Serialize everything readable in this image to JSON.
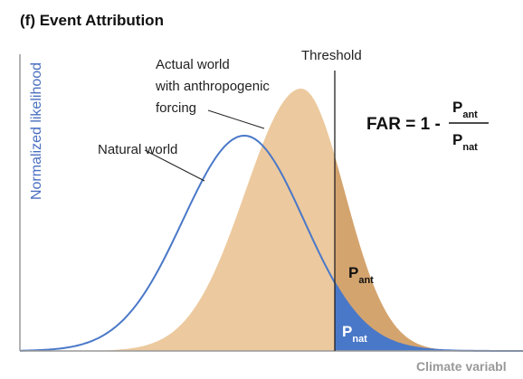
{
  "header": {
    "title": "(f) Event Attribution"
  },
  "axes": {
    "y_label": "Normalized likelihood",
    "x_label": "Climate variabl"
  },
  "labels": {
    "actual_world": [
      "Actual world",
      "with anthropogenic",
      "forcing"
    ],
    "natural_world": "Natural world",
    "threshold": "Threshold",
    "p_ant": {
      "symbol": "P",
      "sub": "ant"
    },
    "p_nat": {
      "symbol": "P",
      "sub": "nat"
    }
  },
  "formula": {
    "lhs": "FAR = 1 -",
    "numerator": {
      "symbol": "P",
      "sub": "ant"
    },
    "denominator": {
      "symbol": "P",
      "sub": "nat"
    }
  }
}
